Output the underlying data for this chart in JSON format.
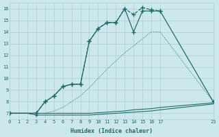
{
  "bg_color": "#cce8ea",
  "grid_color": "#aacfd3",
  "line_color": "#1a6b6b",
  "xlabel": "Humidex (Indice chaleur)",
  "xlim": [
    0,
    23
  ],
  "ylim": [
    6.5,
    16.5
  ],
  "yticks": [
    7,
    8,
    9,
    10,
    11,
    12,
    13,
    14,
    15,
    16
  ],
  "xticks": [
    0,
    1,
    2,
    3,
    4,
    5,
    6,
    7,
    8,
    9,
    10,
    11,
    12,
    13,
    14,
    15,
    16,
    17,
    23
  ],
  "line_dotted_x": [
    0,
    1,
    2,
    3,
    4,
    5,
    6,
    7,
    8,
    9,
    10,
    11,
    12,
    13,
    14,
    15,
    16,
    17,
    23
  ],
  "line_dotted_y": [
    7,
    7,
    7,
    7,
    7,
    7.2,
    7.5,
    8.0,
    8.5,
    9.2,
    10.0,
    10.8,
    11.5,
    12.2,
    12.8,
    13.4,
    14.0,
    14.0,
    8.0
  ],
  "line_flat1_x": [
    0,
    1,
    2,
    3,
    4,
    5,
    6,
    7,
    8,
    9,
    10,
    11,
    12,
    13,
    14,
    15,
    16,
    17,
    23
  ],
  "line_flat1_y": [
    7,
    7,
    7,
    7,
    7,
    7,
    7,
    7,
    7,
    7,
    7.05,
    7.1,
    7.15,
    7.2,
    7.3,
    7.35,
    7.4,
    7.5,
    7.9
  ],
  "line_flat2_x": [
    0,
    1,
    2,
    3,
    4,
    5,
    6,
    7,
    8,
    9,
    10,
    11,
    12,
    13,
    14,
    15,
    16,
    17,
    23
  ],
  "line_flat2_y": [
    7,
    7,
    7,
    6.85,
    6.85,
    6.85,
    6.85,
    6.85,
    6.85,
    6.85,
    6.9,
    6.95,
    7.0,
    7.05,
    7.1,
    7.15,
    7.2,
    7.3,
    7.8
  ],
  "line_marked_dashed_x": [
    0,
    3,
    4,
    5,
    6,
    7,
    8,
    9,
    10,
    11,
    12,
    13,
    14,
    15,
    16,
    17
  ],
  "line_marked_dashed_y": [
    7,
    7,
    8.0,
    8.5,
    9.3,
    9.5,
    9.5,
    13.2,
    14.3,
    14.8,
    14.8,
    16.0,
    15.5,
    16.1,
    15.9,
    15.8
  ],
  "line_marked_solid_x": [
    0,
    3,
    4,
    5,
    6,
    7,
    8,
    9,
    10,
    11,
    12,
    13,
    14,
    15,
    16,
    17,
    23
  ],
  "line_marked_solid_y": [
    7,
    7,
    8.0,
    8.5,
    9.3,
    9.5,
    9.5,
    13.2,
    14.3,
    14.8,
    14.8,
    16.0,
    14.0,
    15.8,
    15.8,
    15.8,
    8.0
  ]
}
